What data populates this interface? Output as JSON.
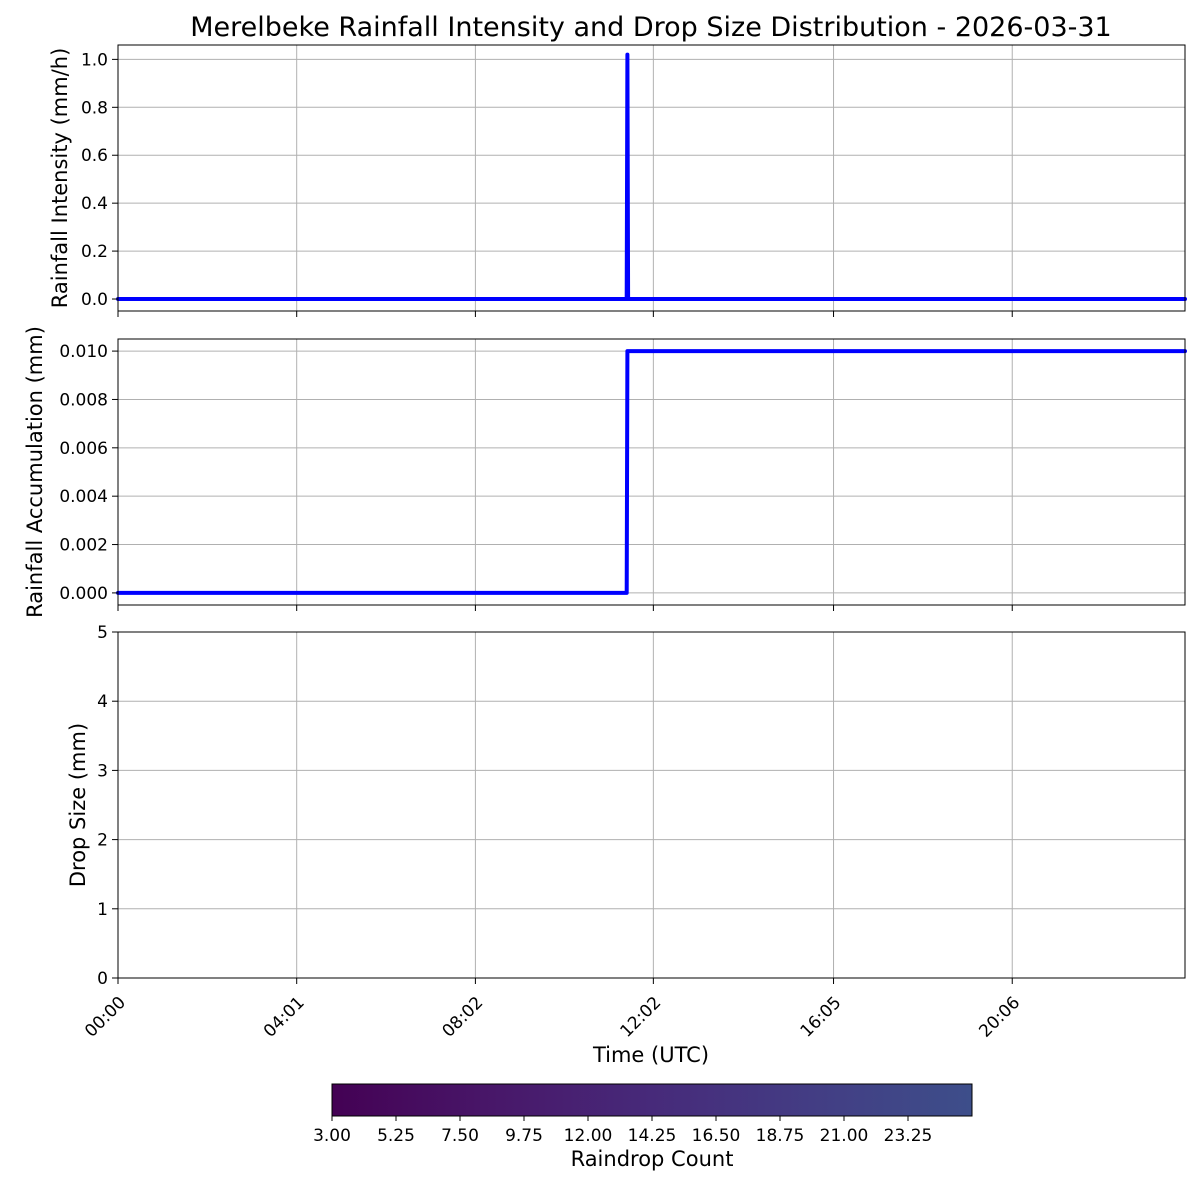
{
  "figure": {
    "title": "Merelbeke Rainfall Intensity and Drop Size Distribution - 2026-03-31"
  },
  "colors": {
    "series": "#0000ff",
    "grid": "#b0b0b0",
    "axes": "#000000",
    "colormap": [
      "#440154",
      "#481769",
      "#472a7a",
      "#433d84",
      "#3d4e8a"
    ]
  },
  "x_axis": {
    "label": "Time (UTC)",
    "range": [
      "00:00",
      "23:59"
    ],
    "tick_labels": [
      "00:00",
      "04:01",
      "08:02",
      "12:02",
      "16:05",
      "20:06"
    ],
    "tick_rotation_deg": 45
  },
  "chart_data": [
    {
      "type": "line",
      "ylabel": "Rainfall Intensity (mm/h)",
      "xlim": [
        "00:00",
        "23:59"
      ],
      "ylim": [
        -0.05,
        1.06
      ],
      "yticks": [
        0.0,
        0.2,
        0.4,
        0.6,
        0.8,
        1.0
      ],
      "ytick_labels": [
        "0.0",
        "0.2",
        "0.4",
        "0.6",
        "0.8",
        "1.0"
      ],
      "grid": true,
      "series": [
        {
          "x": [
            "00:00",
            "11:26",
            "11:27",
            "11:28",
            "23:59"
          ],
          "y": [
            0,
            0,
            1.02,
            0,
            0
          ]
        }
      ]
    },
    {
      "type": "line",
      "ylabel": "Rainfall Accumulation (mm)",
      "xlim": [
        "00:00",
        "23:59"
      ],
      "ylim": [
        -0.0005,
        0.0105
      ],
      "yticks": [
        0.0,
        0.002,
        0.004,
        0.006,
        0.008,
        0.01
      ],
      "ytick_labels": [
        "0.000",
        "0.002",
        "0.004",
        "0.006",
        "0.008",
        "0.010"
      ],
      "grid": true,
      "series": [
        {
          "x": [
            "00:00",
            "11:26",
            "11:27",
            "23:59"
          ],
          "y": [
            0,
            0,
            0.01,
            0.01
          ]
        }
      ]
    },
    {
      "type": "heatmap",
      "ylabel": "Drop Size (mm)",
      "xlabel": "Time (UTC)",
      "xlim": [
        "00:00",
        "23:59"
      ],
      "ylim": [
        0,
        5
      ],
      "yticks": [
        0,
        1,
        2,
        3,
        4,
        5
      ],
      "ytick_labels": [
        "0",
        "1",
        "2",
        "3",
        "4",
        "5"
      ],
      "grid": true,
      "cells": [],
      "colorbar": {
        "label": "Raindrop Count",
        "range": [
          3.0,
          25.5
        ],
        "orientation": "horizontal",
        "tick_labels": [
          "3.00",
          "5.25",
          "7.50",
          "9.75",
          "12.00",
          "14.25",
          "16.50",
          "18.75",
          "21.00",
          "23.25"
        ]
      }
    }
  ]
}
